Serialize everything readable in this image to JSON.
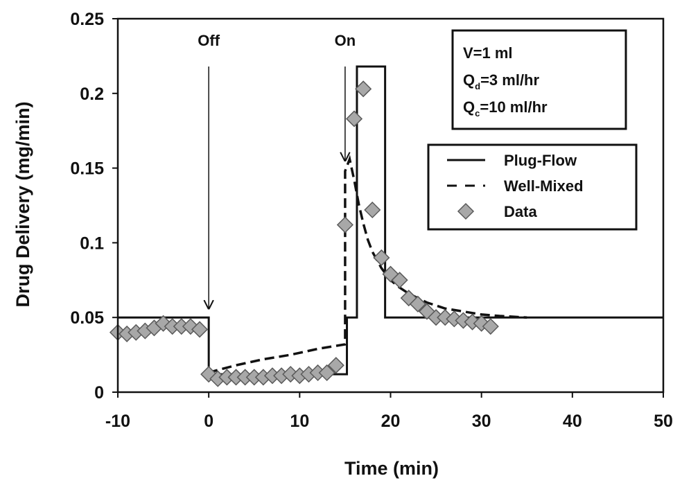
{
  "chart_data": {
    "type": "line",
    "title": "",
    "xlabel": "Time (min)",
    "ylabel": "Drug Delivery (mg/min)",
    "xlim": [
      -10,
      50
    ],
    "ylim": [
      0,
      0.25
    ],
    "x_ticks": [
      -10,
      0,
      10,
      20,
      30,
      40,
      50
    ],
    "x_tick_labels": [
      "-10",
      "0",
      "10",
      "20",
      "30",
      "40",
      "50"
    ],
    "y_ticks": [
      0,
      0.05,
      0.1,
      0.15,
      0.2,
      0.25
    ],
    "y_tick_labels": [
      "0",
      "0.05",
      "0.1",
      "0.15",
      "0.2",
      "0.25"
    ],
    "grid": false,
    "legend_position": "right",
    "annotations": [
      {
        "text": "Off",
        "x": 0,
        "arrow_from_y": 0.218,
        "arrow_to_y": 0.056
      },
      {
        "text": "On",
        "x": 15,
        "arrow_from_y": 0.218,
        "arrow_to_y": 0.155
      }
    ],
    "parameters_box": {
      "lines": [
        {
          "main": "V=1 ml",
          "sub": "",
          "rest": ""
        },
        {
          "main": "Q",
          "sub": "d",
          "rest": "=3 ml/hr"
        },
        {
          "main": "Q",
          "sub": "c",
          "rest": "=10 ml/hr"
        }
      ]
    },
    "series": [
      {
        "name": "Plug-Flow",
        "style": "solid",
        "color": "#111111",
        "x": [
          -10,
          0,
          0,
          15.2,
          15.2,
          16.3,
          16.3,
          19.4,
          19.4,
          50
        ],
        "y": [
          0.05,
          0.05,
          0.012,
          0.012,
          0.05,
          0.05,
          0.218,
          0.218,
          0.05,
          0.05
        ]
      },
      {
        "name": "Well-Mixed",
        "style": "dashed",
        "color": "#111111",
        "x": [
          0,
          0.5,
          3,
          6,
          9,
          12,
          15,
          15,
          15.5,
          16,
          16.5,
          17,
          17.5,
          18,
          19,
          20,
          21,
          22,
          24,
          26,
          28,
          30,
          32,
          35
        ],
        "y": [
          0.012,
          0.014,
          0.018,
          0.022,
          0.025,
          0.029,
          0.032,
          0.148,
          0.156,
          0.142,
          0.126,
          0.113,
          0.102,
          0.094,
          0.083,
          0.075,
          0.07,
          0.066,
          0.06,
          0.056,
          0.054,
          0.052,
          0.051,
          0.05
        ]
      },
      {
        "name": "Data",
        "style": "marker",
        "color": "#a8a8a8",
        "x": [
          -10,
          -9,
          -8,
          -7,
          -6,
          -5,
          -4,
          -3,
          -2,
          -1,
          0,
          1,
          2,
          3,
          4,
          5,
          6,
          7,
          8,
          9,
          10,
          11,
          12,
          13,
          14,
          15,
          16,
          17,
          18,
          19,
          20,
          21,
          22,
          23,
          24,
          25,
          26,
          27,
          28,
          29,
          30,
          31
        ],
        "y": [
          0.04,
          0.039,
          0.04,
          0.041,
          0.043,
          0.046,
          0.044,
          0.044,
          0.044,
          0.042,
          0.012,
          0.009,
          0.01,
          0.01,
          0.01,
          0.01,
          0.01,
          0.011,
          0.011,
          0.012,
          0.011,
          0.012,
          0.013,
          0.013,
          0.018,
          0.112,
          0.183,
          0.203,
          0.122,
          0.09,
          0.079,
          0.075,
          0.063,
          0.059,
          0.054,
          0.05,
          0.05,
          0.049,
          0.048,
          0.047,
          0.046,
          0.044
        ]
      }
    ]
  },
  "colors": {
    "marker_fill": "#a8a8a8",
    "marker_stroke": "#5a5a5a",
    "line": "#111111"
  }
}
